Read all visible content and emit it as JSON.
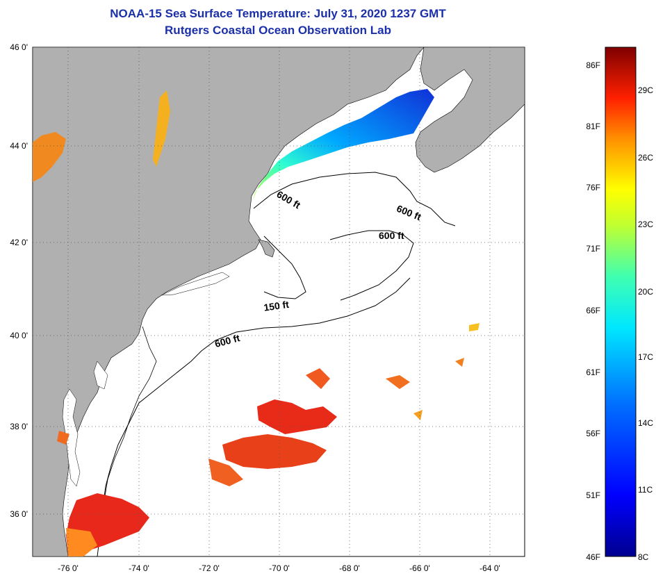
{
  "title": "NOAA-15 Sea Surface Temperature:  July 31, 2020 1237 GMT",
  "subtitle": "Rutgers Coastal Ocean Observation Lab",
  "latitude_labels": [
    "46 0'",
    "44 0'",
    "42 0'",
    "40 0'",
    "38 0'",
    "36 0'"
  ],
  "longitude_labels": [
    "-76 0'",
    "-74 0'",
    "-72 0'",
    "-70 0'",
    "-68 0'",
    "-66 0'",
    "-64 0'"
  ],
  "contour_labels": [
    "600 ft",
    "600 ft",
    "600 ft",
    "150 ft",
    "600 ft"
  ],
  "colorbar": {
    "fahrenheit": [
      "86F",
      "81F",
      "76F",
      "71F",
      "66F",
      "61F",
      "56F",
      "51F",
      "46F"
    ],
    "celsius": [
      "29C",
      "26C",
      "23C",
      "20C",
      "17C",
      "14C",
      "11C",
      "8C"
    ]
  },
  "colors": {
    "title": "#1a2fa8",
    "land": "#b0b0b0",
    "ocean": "#ffffff",
    "warm": "#e8231a",
    "cold": "#1f3fd6"
  }
}
